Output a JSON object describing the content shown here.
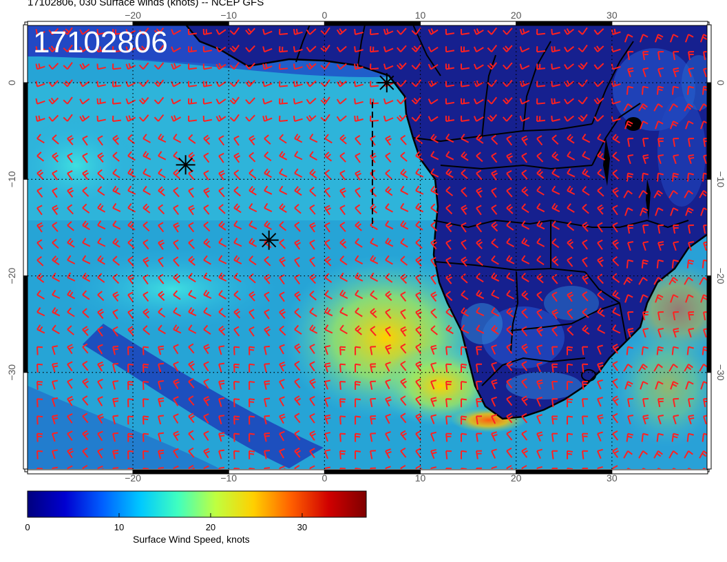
{
  "title": "17102806, 030 Surface winds (knots) -- NCEP GFS",
  "stamp": "17102806",
  "map": {
    "lon_range": [
      -31,
      40
    ],
    "lat_range": [
      -40,
      6
    ],
    "lon_ticks": [
      -20,
      -10,
      0,
      10,
      20,
      30
    ],
    "lat_ticks": [
      0,
      -10,
      -20,
      -30
    ],
    "lon_tick_labels": [
      "−20",
      "−10",
      "0",
      "10",
      "20",
      "30"
    ],
    "lat_tick_labels": [
      "0",
      "−10",
      "−20",
      "−30"
    ],
    "grid": true,
    "markers": [
      {
        "lon": 6.5,
        "lat": 0.0
      },
      {
        "lon": -14.5,
        "lat": -8.5
      },
      {
        "lon": -5.8,
        "lat": -16.3
      }
    ],
    "dashed_track_lon": 5,
    "dashed_track_lat": [
      -2,
      -15
    ]
  },
  "colorbar": {
    "range": [
      0,
      37
    ],
    "ticks": [
      {
        "value": 0,
        "label": "0"
      },
      {
        "value": 10,
        "label": "10"
      },
      {
        "value": 20,
        "label": "20"
      },
      {
        "value": 30,
        "label": "30"
      }
    ],
    "label": "Surface Wind Speed, knots",
    "colors": [
      "#00007f",
      "#0000d0",
      "#0060ff",
      "#00c8ff",
      "#40ffbf",
      "#bfff40",
      "#ffd000",
      "#ff6000",
      "#d00000",
      "#7f0000"
    ]
  },
  "colors": {
    "ocean_low": "#1e3cc8",
    "ocean_mid": "#21a8d8",
    "land": "#141b8c",
    "barbs": "#ff2020",
    "coast": "#000000"
  }
}
